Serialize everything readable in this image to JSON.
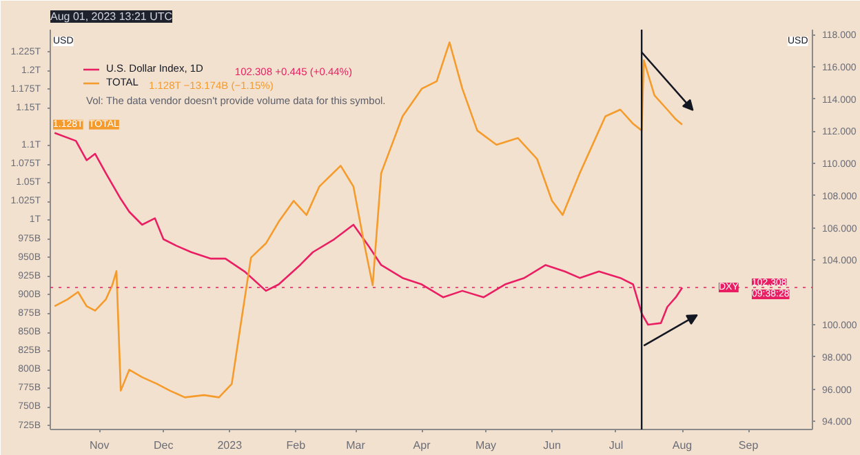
{
  "chart_data": {
    "type": "line",
    "ylabel": "USD",
    "y2label": "USD",
    "annotations": [
      "102.308  +0.445 (+0.44%)",
      "Vol: The data vendor doesn't provide volume data for this symbol.",
      "1.128T  −13.174B (−1.15%)",
      "Aug 01, 2023 13:21 UTC",
      "1.128T",
      "102.308",
      "09:38:28"
    ],
    "series": [
      {
        "name": "U.S. Dollar Index, 1D",
        "color": "#e91e63",
        "axis": "y2",
        "x": [
          "2022-10-11",
          "2022-10-21",
          "2022-10-26",
          "2022-10-30",
          "2022-11-04",
          "2022-11-11",
          "2022-11-15",
          "2022-11-21",
          "2022-11-27",
          "2022-12-01",
          "2022-12-07",
          "2022-12-14",
          "2022-12-23",
          "2022-12-30",
          "2023-01-08",
          "2023-01-18",
          "2023-01-24",
          "2023-02-03",
          "2023-02-09",
          "2023-02-19",
          "2023-02-28",
          "2023-03-07",
          "2023-03-13",
          "2023-03-23",
          "2023-04-01",
          "2023-04-11",
          "2023-04-20",
          "2023-04-30",
          "2023-05-10",
          "2023-05-19",
          "2023-05-29",
          "2023-06-07",
          "2023-06-14",
          "2023-06-23",
          "2023-07-03",
          "2023-07-09",
          "2023-07-13",
          "2023-07-16",
          "2023-07-22",
          "2023-07-25",
          "2023-07-29",
          "2023-08-01"
        ],
        "values": [
          111.9,
          111.4,
          110.2,
          110.6,
          109.4,
          107.8,
          107.0,
          106.2,
          106.6,
          105.3,
          104.9,
          104.5,
          104.1,
          104.1,
          103.3,
          102.1,
          102.5,
          103.7,
          104.5,
          105.3,
          106.2,
          104.9,
          103.7,
          102.9,
          102.5,
          101.7,
          102.1,
          101.7,
          102.5,
          102.9,
          103.7,
          103.3,
          102.9,
          103.3,
          102.9,
          102.5,
          100.7,
          100.0,
          100.1,
          101.1,
          101.7,
          102.3
        ]
      },
      {
        "name": "TOTAL",
        "color": "#f59b2b",
        "axis": "y",
        "x": [
          "2022-10-11",
          "2022-10-17",
          "2022-10-22",
          "2022-10-26",
          "2022-10-30",
          "2022-11-04",
          "2022-11-07",
          "2022-11-09",
          "2022-11-11",
          "2022-11-15",
          "2022-11-21",
          "2022-11-28",
          "2022-12-04",
          "2022-12-11",
          "2022-12-20",
          "2022-12-27",
          "2023-01-02",
          "2023-01-06",
          "2023-01-11",
          "2023-01-18",
          "2023-01-24",
          "2023-01-31",
          "2023-02-06",
          "2023-02-12",
          "2023-02-22",
          "2023-02-28",
          "2023-03-05",
          "2023-03-09",
          "2023-03-13",
          "2023-03-23",
          "2023-04-01",
          "2023-04-08",
          "2023-04-14",
          "2023-04-20",
          "2023-04-27",
          "2023-05-06",
          "2023-05-16",
          "2023-05-25",
          "2023-06-01",
          "2023-06-06",
          "2023-06-14",
          "2023-06-20",
          "2023-06-26",
          "2023-07-03",
          "2023-07-09",
          "2023-07-13",
          "2023-07-14",
          "2023-07-19",
          "2023-07-25",
          "2023-07-29",
          "2023-08-01"
        ],
        "values": [
          885000000000,
          894000000000,
          904000000000,
          885000000000,
          879000000000,
          894000000000,
          913000000000,
          932000000000,
          772000000000,
          800000000000,
          790000000000,
          781000000000,
          772000000000,
          763000000000,
          766000000000,
          763000000000,
          781000000000,
          857000000000,
          950000000000,
          969000000000,
          998000000000,
          1026000000000,
          1007000000000,
          1045000000000,
          1073000000000,
          1045000000000,
          969000000000,
          913000000000,
          1063000000000,
          1139000000000,
          1176000000000,
          1186000000000,
          1238000000000,
          1176000000000,
          1120000000000,
          1101000000000,
          1110000000000,
          1082000000000,
          1026000000000,
          1007000000000,
          1063000000000,
          1101000000000,
          1139000000000,
          1148000000000,
          1129000000000,
          1120000000000,
          1214000000000,
          1167000000000,
          1148000000000,
          1135000000000,
          1128000000000
        ]
      }
    ],
    "xlim": [
      "2022-10-09",
      "2023-10-01"
    ],
    "xticks": [
      {
        "value": "2022-11-01",
        "label": "Nov"
      },
      {
        "value": "2022-12-01",
        "label": "Dec"
      },
      {
        "value": "2023-01-01",
        "label": "2023"
      },
      {
        "value": "2023-02-01",
        "label": "Feb"
      },
      {
        "value": "2023-03-01",
        "label": "Mar"
      },
      {
        "value": "2023-04-01",
        "label": "Apr"
      },
      {
        "value": "2023-05-01",
        "label": "May"
      },
      {
        "value": "2023-06-01",
        "label": "Jun"
      },
      {
        "value": "2023-07-01",
        "label": "Jul"
      },
      {
        "value": "2023-08-01",
        "label": "Aug"
      },
      {
        "value": "2023-09-01",
        "label": "Sep"
      }
    ],
    "ylim": [
      720000000000,
      1255000000000
    ],
    "yticks": [
      {
        "value": 725000000000,
        "label": "725B"
      },
      {
        "value": 750000000000,
        "label": "750B"
      },
      {
        "value": 775000000000,
        "label": "775B"
      },
      {
        "value": 800000000000,
        "label": "800B"
      },
      {
        "value": 825000000000,
        "label": "825B"
      },
      {
        "value": 850000000000,
        "label": "850B"
      },
      {
        "value": 875000000000,
        "label": "875B"
      },
      {
        "value": 900000000000,
        "label": "900B"
      },
      {
        "value": 925000000000,
        "label": "925B"
      },
      {
        "value": 950000000000,
        "label": "950B"
      },
      {
        "value": 975000000000,
        "label": "975B"
      },
      {
        "value": 1000000000000,
        "label": "1T"
      },
      {
        "value": 1025000000000,
        "label": "1.025T"
      },
      {
        "value": 1050000000000,
        "label": "1.05T"
      },
      {
        "value": 1075000000000,
        "label": "1.075T"
      },
      {
        "value": 1100000000000,
        "label": "1.1T"
      },
      {
        "value": 1150000000000,
        "label": "1.15T"
      },
      {
        "value": 1175000000000,
        "label": "1.175T"
      },
      {
        "value": 1200000000000,
        "label": "1.2T"
      },
      {
        "value": 1225000000000,
        "label": "1.225T"
      }
    ],
    "y2lim": [
      93.5,
      118.3
    ],
    "y2ticks": [
      {
        "value": 94,
        "label": "94.000"
      },
      {
        "value": 96,
        "label": "96.000"
      },
      {
        "value": 98,
        "label": "98.000"
      },
      {
        "value": 100,
        "label": "100.000"
      },
      {
        "value": 104,
        "label": "104.000"
      },
      {
        "value": 106,
        "label": "106.000"
      },
      {
        "value": 108,
        "label": "108.000"
      },
      {
        "value": 110,
        "label": "110.000"
      },
      {
        "value": 112,
        "label": "112.000"
      },
      {
        "value": 114,
        "label": "114.000"
      },
      {
        "value": 116,
        "label": "116.000"
      },
      {
        "value": 118,
        "label": "118.000"
      }
    ],
    "ref_lines": [
      {
        "axis": "x",
        "value": "2023-07-13",
        "color": "#131722",
        "line_style": "solid"
      },
      {
        "axis": "y2",
        "value": 102.308,
        "label": "DXY",
        "color": "#e91e63",
        "line_style": "dotted"
      }
    ],
    "legend": "top left",
    "grid": false,
    "line_style": "solid",
    "marker": "none"
  }
}
